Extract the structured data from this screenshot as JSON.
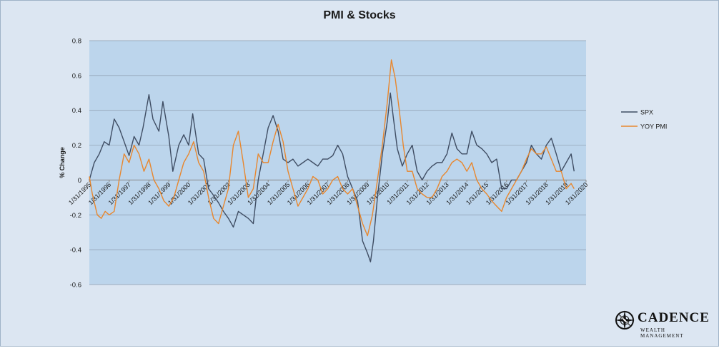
{
  "chart_data": {
    "type": "line",
    "title": "PMI & Stocks",
    "ylabel": "% Change",
    "xlabel": "",
    "ylim": [
      -0.6,
      0.8
    ],
    "yticks": [
      "0.8",
      "0.6",
      "0.4",
      "0.2",
      "0",
      "-0.2",
      "-0.4",
      "-0.6"
    ],
    "xlim": [
      1995.0,
      2020.0
    ],
    "xtick_labels": [
      "1/31/1995",
      "1/31/1996",
      "1/31/1997",
      "1/31/1998",
      "1/31/1999",
      "1/31/2000",
      "1/31/2001",
      "1/31/2002",
      "1/31/2003",
      "1/31/2004",
      "1/31/2005",
      "1/31/2006",
      "1/31/2007",
      "1/31/2008",
      "1/31/2009",
      "1/31/2010",
      "1/31/2011",
      "1/31/2012",
      "1/31/2013",
      "1/31/2014",
      "1/31/2015",
      "1/31/2016",
      "1/31/2017",
      "1/31/2018",
      "1/31/2019",
      "1/31/2020"
    ],
    "grid": true,
    "legend_position": "right",
    "series": [
      {
        "name": "SPX",
        "color": "#3f4d63",
        "x": [
          1995.0,
          1995.25,
          1995.5,
          1995.75,
          1996.0,
          1996.25,
          1996.5,
          1996.75,
          1997.0,
          1997.25,
          1997.5,
          1997.7,
          1998.0,
          1998.2,
          1998.5,
          1998.7,
          1999.0,
          1999.2,
          1999.5,
          1999.75,
          2000.0,
          2000.2,
          2000.5,
          2000.75,
          2001.0,
          2001.2,
          2001.5,
          2001.75,
          2002.0,
          2002.25,
          2002.5,
          2002.75,
          2003.0,
          2003.25,
          2003.5,
          2003.75,
          2004.0,
          2004.25,
          2004.5,
          2004.75,
          2005.0,
          2005.25,
          2005.5,
          2005.75,
          2006.0,
          2006.25,
          2006.5,
          2006.75,
          2007.0,
          2007.25,
          2007.5,
          2007.75,
          2008.0,
          2008.25,
          2008.5,
          2008.75,
          2009.0,
          2009.15,
          2009.3,
          2009.5,
          2009.75,
          2010.0,
          2010.15,
          2010.3,
          2010.5,
          2010.75,
          2011.0,
          2011.25,
          2011.5,
          2011.75,
          2012.0,
          2012.25,
          2012.5,
          2012.75,
          2013.0,
          2013.25,
          2013.5,
          2013.75,
          2014.0,
          2014.25,
          2014.5,
          2014.75,
          2015.0,
          2015.25,
          2015.5,
          2015.75,
          2016.0,
          2016.25,
          2016.5,
          2016.75,
          2017.0,
          2017.25,
          2017.5,
          2017.75,
          2018.0,
          2018.25,
          2018.5,
          2018.75,
          2019.0,
          2019.25,
          2019.4
        ],
        "values": [
          0.0,
          0.1,
          0.15,
          0.22,
          0.2,
          0.35,
          0.3,
          0.22,
          0.14,
          0.25,
          0.2,
          0.3,
          0.49,
          0.35,
          0.28,
          0.45,
          0.25,
          0.05,
          0.2,
          0.26,
          0.2,
          0.38,
          0.15,
          0.12,
          -0.05,
          -0.08,
          -0.13,
          -0.18,
          -0.22,
          -0.27,
          -0.18,
          -0.2,
          -0.22,
          -0.25,
          0.0,
          0.15,
          0.3,
          0.37,
          0.28,
          0.12,
          0.1,
          0.12,
          0.08,
          0.1,
          0.12,
          0.1,
          0.08,
          0.12,
          0.12,
          0.14,
          0.2,
          0.15,
          0.02,
          -0.05,
          -0.12,
          -0.35,
          -0.42,
          -0.47,
          -0.35,
          -0.1,
          0.15,
          0.34,
          0.5,
          0.36,
          0.18,
          0.08,
          0.15,
          0.2,
          0.05,
          0.0,
          0.05,
          0.08,
          0.1,
          0.1,
          0.15,
          0.27,
          0.18,
          0.15,
          0.15,
          0.28,
          0.2,
          0.18,
          0.15,
          0.1,
          0.12,
          -0.05,
          -0.05,
          0.0,
          0.0,
          0.05,
          0.1,
          0.2,
          0.15,
          0.12,
          0.2,
          0.24,
          0.15,
          0.05,
          0.1,
          0.15,
          0.05
        ]
      },
      {
        "name": "YOY PMI",
        "color": "#e8872e",
        "x": [
          1995.0,
          1995.15,
          1995.4,
          1995.6,
          1995.8,
          1996.0,
          1996.25,
          1996.5,
          1996.75,
          1997.0,
          1997.25,
          1997.5,
          1997.75,
          1998.0,
          1998.25,
          1998.5,
          1998.75,
          1999.0,
          1999.25,
          1999.5,
          1999.75,
          2000.0,
          2000.25,
          2000.5,
          2000.75,
          2001.0,
          2001.25,
          2001.5,
          2001.75,
          2002.0,
          2002.25,
          2002.5,
          2002.75,
          2003.0,
          2003.25,
          2003.5,
          2003.75,
          2004.0,
          2004.25,
          2004.5,
          2004.75,
          2005.0,
          2005.25,
          2005.5,
          2005.75,
          2006.0,
          2006.25,
          2006.5,
          2006.75,
          2007.0,
          2007.25,
          2007.5,
          2007.75,
          2008.0,
          2008.25,
          2008.5,
          2008.75,
          2009.0,
          2009.25,
          2009.5,
          2009.75,
          2010.0,
          2010.2,
          2010.4,
          2010.6,
          2010.8,
          2011.0,
          2011.25,
          2011.5,
          2011.75,
          2012.0,
          2012.25,
          2012.5,
          2012.75,
          2013.0,
          2013.25,
          2013.5,
          2013.75,
          2014.0,
          2014.25,
          2014.5,
          2014.75,
          2015.0,
          2015.25,
          2015.5,
          2015.75,
          2016.0,
          2016.25,
          2016.5,
          2016.75,
          2017.0,
          2017.25,
          2017.5,
          2017.75,
          2018.0,
          2018.25,
          2018.5,
          2018.75,
          2019.0,
          2019.25,
          2019.4
        ],
        "values": [
          0.02,
          -0.08,
          -0.2,
          -0.22,
          -0.18,
          -0.2,
          -0.18,
          0.0,
          0.15,
          0.1,
          0.2,
          0.15,
          0.05,
          0.12,
          0.0,
          -0.05,
          -0.12,
          -0.15,
          -0.1,
          0.0,
          0.1,
          0.15,
          0.22,
          0.1,
          0.05,
          -0.1,
          -0.22,
          -0.25,
          -0.15,
          -0.05,
          0.2,
          0.28,
          0.1,
          -0.1,
          -0.05,
          0.15,
          0.1,
          0.1,
          0.22,
          0.32,
          0.22,
          0.05,
          -0.05,
          -0.15,
          -0.1,
          -0.05,
          0.02,
          0.0,
          -0.08,
          -0.05,
          0.0,
          0.02,
          -0.05,
          -0.08,
          -0.05,
          -0.15,
          -0.25,
          -0.32,
          -0.2,
          0.0,
          0.2,
          0.45,
          0.69,
          0.58,
          0.4,
          0.2,
          0.05,
          0.05,
          -0.05,
          -0.08,
          -0.1,
          -0.1,
          -0.05,
          0.02,
          0.05,
          0.1,
          0.12,
          0.1,
          0.05,
          0.1,
          0.0,
          -0.05,
          -0.08,
          -0.12,
          -0.15,
          -0.18,
          -0.1,
          -0.05,
          0.0,
          0.05,
          0.12,
          0.18,
          0.15,
          0.15,
          0.19,
          0.12,
          0.05,
          0.05,
          -0.05,
          -0.02,
          -0.05
        ]
      }
    ]
  },
  "logo": {
    "name": "CADENCE",
    "tagline": "WEALTH MANAGEMENT"
  }
}
